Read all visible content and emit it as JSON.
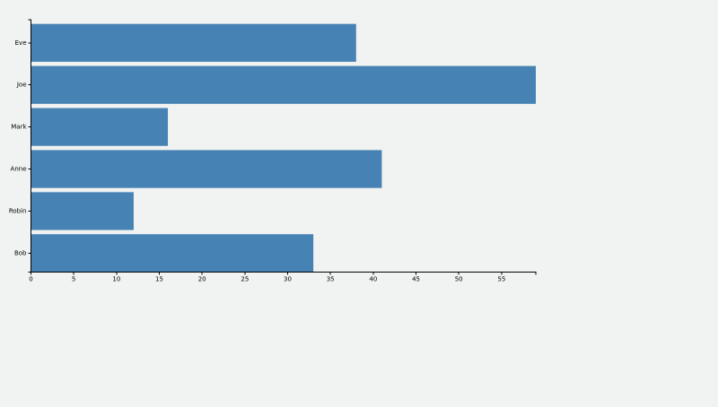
{
  "chart_data": {
    "type": "bar",
    "orientation": "horizontal",
    "categories": [
      "Eve",
      "Joe",
      "Mark",
      "Anne",
      "Robin",
      "Bob"
    ],
    "values": [
      38,
      59,
      16,
      41,
      12,
      33
    ],
    "xlim": [
      0,
      59
    ],
    "x_ticks": [
      0,
      5,
      10,
      15,
      20,
      25,
      30,
      35,
      40,
      45,
      50,
      55
    ],
    "title": "",
    "xlabel": "",
    "ylabel": "",
    "bar_color": "#4682b4",
    "background_color": "#f1f2f2",
    "grid": false,
    "legend": "none"
  }
}
